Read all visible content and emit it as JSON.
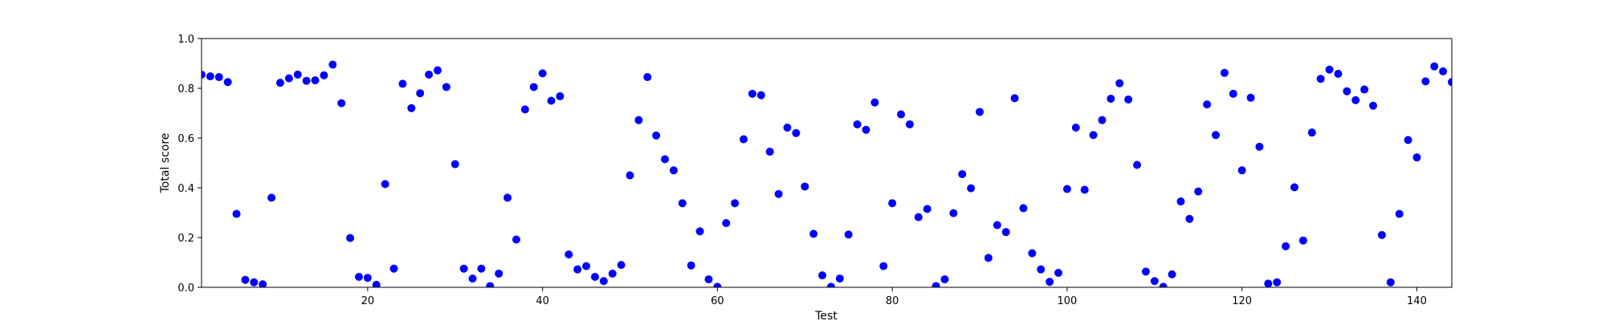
{
  "chart_data": {
    "type": "scatter",
    "title": "",
    "xlabel": "Test",
    "ylabel": "Total score",
    "xlim": [
      1,
      144
    ],
    "ylim": [
      0,
      1.0
    ],
    "x_ticks": [
      20,
      40,
      60,
      80,
      100,
      120,
      140
    ],
    "x_tick_labels": [
      "20",
      "40",
      "60",
      "80",
      "100",
      "120",
      "140"
    ],
    "y_ticks": [
      0.0,
      0.2,
      0.4,
      0.6,
      0.8,
      1.0
    ],
    "y_tick_labels": [
      "0.0",
      "0.2",
      "0.4",
      "0.6",
      "0.8",
      "1.0"
    ],
    "grid": false,
    "marker_color": "#0000ff",
    "series": [
      {
        "x": [
          1,
          2,
          3,
          4,
          5,
          6,
          7,
          8,
          9,
          10,
          11,
          12,
          13,
          14,
          15,
          16,
          17,
          18,
          19,
          20,
          21,
          22,
          23,
          24,
          25,
          26,
          27,
          28,
          29,
          30,
          31,
          32,
          33,
          34,
          35,
          36,
          37,
          38,
          39,
          40,
          41,
          42,
          43,
          44,
          45,
          46,
          47,
          48,
          49,
          50,
          51,
          52,
          53,
          54,
          55,
          56,
          57,
          58,
          59,
          60,
          61,
          62,
          63,
          64,
          65,
          66,
          67,
          68,
          69,
          70,
          71,
          72,
          73,
          74,
          75,
          76,
          77,
          78,
          79,
          80,
          81,
          82,
          83,
          84,
          85,
          86,
          87,
          88,
          89,
          90,
          91,
          92,
          93,
          94,
          95,
          96,
          97,
          98,
          99,
          100,
          101,
          102,
          103,
          104,
          105,
          106,
          107,
          108,
          109,
          110,
          111,
          112,
          113,
          114,
          115,
          116,
          117,
          118,
          119,
          120,
          121,
          122,
          123,
          124,
          125,
          126,
          127,
          128,
          129,
          130,
          131,
          132,
          133,
          134,
          135,
          136,
          137,
          138,
          139,
          140,
          141,
          142,
          143,
          144
        ],
        "y": [
          0.855,
          0.848,
          0.845,
          0.825,
          0.295,
          0.03,
          0.02,
          0.012,
          0.36,
          0.822,
          0.84,
          0.855,
          0.83,
          0.832,
          0.852,
          0.895,
          0.74,
          0.198,
          0.042,
          0.038,
          0.01,
          0.415,
          0.075,
          0.818,
          0.72,
          0.78,
          0.855,
          0.872,
          0.805,
          0.495,
          0.075,
          0.035,
          0.075,
          0.005,
          0.055,
          0.36,
          0.192,
          0.715,
          0.805,
          0.86,
          0.75,
          0.768,
          0.132,
          0.072,
          0.085,
          0.042,
          0.025,
          0.055,
          0.09,
          0.45,
          0.672,
          0.845,
          0.61,
          0.515,
          0.47,
          0.338,
          0.088,
          0.225,
          0.032,
          0.002,
          0.258,
          0.338,
          0.595,
          0.778,
          0.772,
          0.545,
          0.375,
          0.642,
          0.62,
          0.405,
          0.215,
          0.048,
          0.002,
          0.035,
          0.212,
          0.655,
          0.633,
          0.743,
          0.085,
          0.338,
          0.695,
          0.655,
          0.282,
          0.315,
          0.005,
          0.032,
          0.298,
          0.455,
          0.398,
          0.705,
          0.118,
          0.25,
          0.222,
          0.76,
          0.318,
          0.137,
          0.072,
          0.022,
          0.058,
          0.395,
          0.642,
          0.392,
          0.612,
          0.672,
          0.758,
          0.82,
          0.755,
          0.492,
          0.063,
          0.025,
          0.002,
          0.052,
          0.345,
          0.275,
          0.385,
          0.735,
          0.612,
          0.862,
          0.778,
          0.47,
          0.762,
          0.565,
          0.015,
          0.02,
          0.165,
          0.402,
          0.188,
          0.622,
          0.838,
          0.875,
          0.858,
          0.788,
          0.752,
          0.795,
          0.73,
          0.21,
          0.02,
          0.295,
          0.592,
          0.522,
          0.828,
          0.888,
          0.868,
          0.825
        ]
      }
    ]
  }
}
